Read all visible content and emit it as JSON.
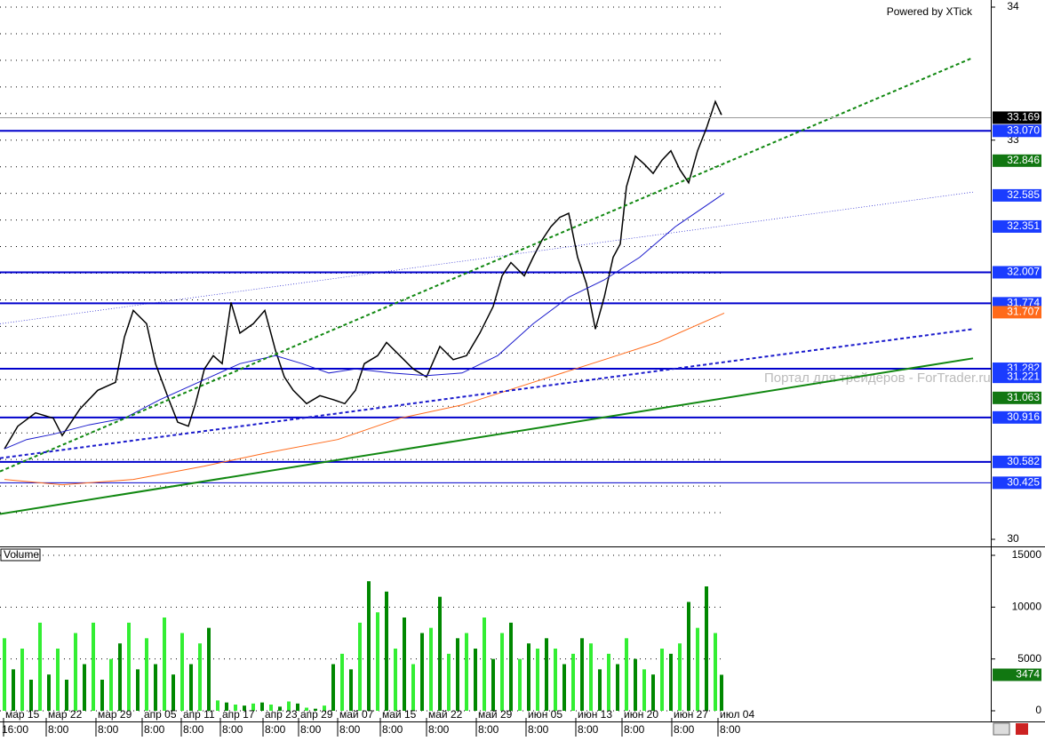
{
  "chart_data": [
    {
      "type": "line",
      "title": "Powered by XTick",
      "watermark": "Портал для трейдеров - ForTrader.ru",
      "xlim": [
        0,
        279
      ],
      "ylim": [
        30,
        34
      ],
      "yticks": [
        30,
        33,
        34
      ],
      "ygrid": [
        30.2,
        30.4,
        30.6,
        30.8,
        31,
        31.2,
        31.4,
        31.6,
        31.8,
        32,
        32.2,
        32.4,
        32.6,
        32.8,
        33,
        33.2,
        33.4,
        33.6,
        33.8,
        34
      ],
      "series": [
        {
          "color": "#000000",
          "width": 1.5,
          "dash": false,
          "x": [
            1.25,
            5,
            10,
            15,
            17.5,
            22.5,
            27.5,
            32.5,
            35,
            37.5,
            41.25,
            43.75,
            47.5,
            50,
            53,
            55,
            57.5,
            60,
            62.5,
            65,
            67.5,
            71.25,
            74.5,
            77.5,
            80,
            82.5,
            86.25,
            90,
            93.75,
            97,
            100,
            102.5,
            106.25,
            108.75,
            112.5,
            116.25,
            120,
            123.75,
            127.5,
            131.25,
            135,
            138.75,
            141.25,
            143.75,
            147.5,
            150,
            152.5,
            155,
            157.5,
            160,
            162.5,
            165,
            167.5,
            170,
            172.5,
            174.5,
            176.25,
            178.75,
            181.25,
            183.75,
            186.25,
            188.75,
            191.25,
            193.75,
            196.25,
            198.75,
            201.25,
            203
          ],
          "values": [
            30.68,
            30.85,
            30.95,
            30.91,
            30.78,
            30.98,
            31.12,
            31.18,
            31.52,
            31.72,
            31.62,
            31.32,
            31.05,
            30.88,
            30.85,
            31.02,
            31.28,
            31.38,
            31.32,
            31.78,
            31.55,
            31.62,
            31.72,
            31.42,
            31.22,
            31.12,
            31.02,
            31.08,
            31.05,
            31.02,
            31.12,
            31.32,
            31.38,
            31.48,
            31.38,
            31.28,
            31.22,
            31.45,
            31.35,
            31.38,
            31.55,
            31.75,
            31.98,
            32.08,
            31.98,
            32.12,
            32.25,
            32.35,
            32.42,
            32.45,
            32.12,
            31.92,
            31.58,
            31.82,
            32.12,
            32.22,
            32.65,
            32.88,
            32.82,
            32.75,
            32.85,
            32.92,
            32.78,
            32.68,
            32.92,
            33.09,
            33.29,
            33.19
          ]
        },
        {
          "color": "#1a1acc",
          "width": 1,
          "dash": false,
          "x": [
            1.25,
            7.5,
            15,
            25,
            35,
            45,
            57.5,
            67.5,
            77.5,
            85,
            92.5,
            100,
            110,
            120,
            130,
            140,
            150,
            160,
            170,
            180,
            190,
            203.75
          ],
          "values": [
            30.68,
            30.75,
            30.79,
            30.86,
            30.91,
            31.05,
            31.2,
            31.32,
            31.38,
            31.32,
            31.25,
            31.28,
            31.25,
            31.23,
            31.25,
            31.38,
            31.62,
            31.82,
            31.95,
            32.12,
            32.35,
            32.6
          ]
        },
        {
          "color": "#ff6a1a",
          "width": 1,
          "dash": false,
          "x": [
            1.25,
            17.5,
            37.5,
            57.5,
            75,
            95,
            112.5,
            130,
            150,
            170,
            185,
            203.75
          ],
          "values": [
            30.45,
            30.41,
            30.45,
            30.55,
            30.65,
            30.75,
            30.91,
            31.01,
            31.18,
            31.35,
            31.48,
            31.7
          ]
        },
        {
          "color": "#1a1acc",
          "width": 0.7,
          "dash": true,
          "x": [
            0,
            273.75
          ],
          "values": [
            31.62,
            32.61
          ]
        },
        {
          "color": "#118811",
          "width": 2,
          "dash": true,
          "x": [
            0,
            273.75
          ],
          "values": [
            30.51,
            33.62
          ]
        },
        {
          "color": "#1a1acc",
          "width": 2,
          "dash": true,
          "x": [
            0,
            273.75
          ],
          "values": [
            30.61,
            31.58
          ]
        },
        {
          "color": "#118811",
          "width": 2,
          "dash": false,
          "x": [
            0,
            273.75
          ],
          "values": [
            30.19,
            31.36
          ]
        }
      ],
      "levels": [
        {
          "value": 33.07,
          "label": "33.070",
          "color": "#0000cc",
          "width": 2
        },
        {
          "value": 32.007,
          "label": "32.007",
          "color": "#0000cc",
          "width": 2
        },
        {
          "value": 31.774,
          "label": "31.774",
          "color": "#0000cc",
          "width": 2
        },
        {
          "value": 31.282,
          "label": "31.282",
          "color": "#0000cc",
          "width": 2
        },
        {
          "value": 30.916,
          "label": "30.916",
          "color": "#0000cc",
          "width": 2
        },
        {
          "value": 30.582,
          "label": "30.582",
          "color": "#0000cc",
          "width": 2
        },
        {
          "value": 30.425,
          "label": "30.425",
          "color": "#0000cc",
          "width": 1
        }
      ],
      "price_tags": [
        {
          "value": 32.846,
          "label": "32.846",
          "color": "#117711"
        },
        {
          "value": 32.585,
          "label": "32.585",
          "color": "#1a3cff"
        },
        {
          "value": 32.351,
          "label": "32.351",
          "color": "#1a3cff"
        },
        {
          "value": 31.707,
          "label": "31.707",
          "color": "#ff6a1a"
        },
        {
          "value": 31.221,
          "label": "31.221",
          "color": "#1a3cff"
        },
        {
          "value": 31.063,
          "label": "31.063",
          "color": "#117711"
        }
      ],
      "current": {
        "value": 33.169,
        "label": "33.169",
        "color": "#000000"
      }
    },
    {
      "type": "bar",
      "title": "Volume",
      "xlim": [
        0,
        279
      ],
      "ylim": [
        0,
        15000
      ],
      "yticks": [
        0,
        5000,
        10000,
        15000
      ],
      "colors": [
        "#33ee33",
        "#008800"
      ],
      "x": [
        1.25,
        3.75,
        6.25,
        8.75,
        11.25,
        13.75,
        16.25,
        18.75,
        21.25,
        23.75,
        26.25,
        28.75,
        31.25,
        33.75,
        36.25,
        38.75,
        41.25,
        43.75,
        46.25,
        48.75,
        51.25,
        53.75,
        56.25,
        58.75,
        61.25,
        63.75,
        66.25,
        68.75,
        71.25,
        73.75,
        76.25,
        78.75,
        81.25,
        83.75,
        86.25,
        88.75,
        91.25,
        93.75,
        96.25,
        98.75,
        101.25,
        103.75,
        106.25,
        108.75,
        111.25,
        113.75,
        116.25,
        118.75,
        121.25,
        123.75,
        126.25,
        128.75,
        131.25,
        133.75,
        136.25,
        138.75,
        141.25,
        143.75,
        146.25,
        148.75,
        151.25,
        153.75,
        156.25,
        158.75,
        161.25,
        163.75,
        166.25,
        168.75,
        171.25,
        173.75,
        176.25,
        178.75,
        181.25,
        183.75,
        186.25,
        188.75,
        191.25,
        193.75,
        196.25,
        198.75,
        201.25,
        203
      ],
      "values": [
        7000,
        4000,
        6000,
        3000,
        8500,
        3500,
        6000,
        3000,
        7500,
        4500,
        8500,
        3000,
        5000,
        6500,
        8500,
        4000,
        7000,
        4500,
        9000,
        3500,
        7500,
        4500,
        6500,
        8000,
        1000,
        800,
        600,
        500,
        700,
        800,
        600,
        400,
        900,
        700,
        300,
        200,
        500,
        4500,
        5500,
        4000,
        8500,
        12500,
        9500,
        11500,
        6000,
        9000,
        4500,
        7500,
        8000,
        11000,
        5500,
        7000,
        7500,
        6000,
        9000,
        5000,
        7500,
        8500,
        5000,
        6500,
        6000,
        7000,
        6000,
        4500,
        5500,
        7000,
        6500,
        4000,
        5500,
        4500,
        7000,
        5000,
        4000,
        3500,
        6000,
        5500,
        6500,
        10500,
        8000,
        12000,
        7500,
        3474
      ],
      "current": {
        "value": 3474,
        "label": "3474",
        "color": "#117711"
      },
      "xticks": [
        {
          "value": 1,
          "label": "мар 15"
        },
        {
          "value": 13,
          "label": "мар 22"
        },
        {
          "value": 27,
          "label": "мар 29"
        },
        {
          "value": 40,
          "label": "апр 05"
        },
        {
          "value": 51,
          "label": "апр 11"
        },
        {
          "value": 62,
          "label": "апр 17"
        },
        {
          "value": 74,
          "label": "апр 23"
        },
        {
          "value": 84,
          "label": "апр 29"
        },
        {
          "value": 95,
          "label": "май 07"
        },
        {
          "value": 107,
          "label": "май 15"
        },
        {
          "value": 120,
          "label": "май 22"
        },
        {
          "value": 134,
          "label": "май 29"
        },
        {
          "value": 148,
          "label": "июн 05"
        },
        {
          "value": 162,
          "label": "июн 13"
        },
        {
          "value": 175,
          "label": "июн 20"
        },
        {
          "value": 189,
          "label": "июн 27"
        },
        {
          "value": 202,
          "label": "июл 04"
        }
      ],
      "xticks2": [
        {
          "value": 0,
          "label": "16:00"
        },
        {
          "value": 13,
          "label": "8:00"
        },
        {
          "value": 27,
          "label": "8:00"
        },
        {
          "value": 40,
          "label": "8:00"
        },
        {
          "value": 51,
          "label": "8:00"
        },
        {
          "value": 62,
          "label": "8:00"
        },
        {
          "value": 74,
          "label": "8:00"
        },
        {
          "value": 84,
          "label": "8:00"
        },
        {
          "value": 95,
          "label": "8:00"
        },
        {
          "value": 107,
          "label": "8:00"
        },
        {
          "value": 120,
          "label": "8:00"
        },
        {
          "value": 134,
          "label": "8:00"
        },
        {
          "value": 148,
          "label": "8:00"
        },
        {
          "value": 162,
          "label": "8:00"
        },
        {
          "value": 175,
          "label": "8:00"
        },
        {
          "value": 189,
          "label": "8:00"
        },
        {
          "value": 202,
          "label": "8:00"
        }
      ]
    }
  ]
}
